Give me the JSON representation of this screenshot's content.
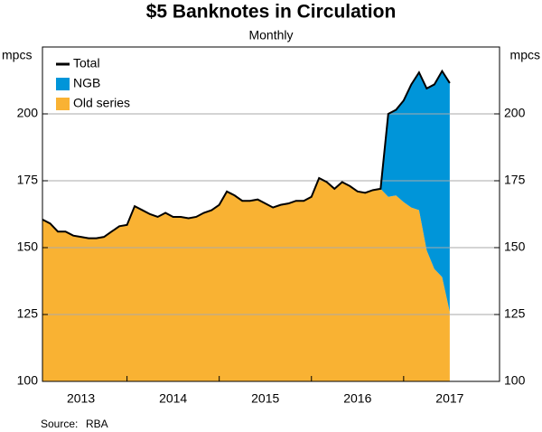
{
  "chart_data": {
    "type": "stacked_area",
    "title": "$5 Banknotes in Circulation",
    "subtitle": "Monthly",
    "y_label": "mpcs",
    "y2_label": "mpcs",
    "source_label": "Source:",
    "source": "RBA",
    "x": [
      2013.083,
      2013.167,
      2013.25,
      2013.333,
      2013.417,
      2013.5,
      2013.583,
      2013.667,
      2013.75,
      2013.833,
      2013.917,
      2014.0,
      2014.083,
      2014.167,
      2014.25,
      2014.333,
      2014.417,
      2014.5,
      2014.583,
      2014.667,
      2014.75,
      2014.833,
      2014.917,
      2015.0,
      2015.083,
      2015.167,
      2015.25,
      2015.333,
      2015.417,
      2015.5,
      2015.583,
      2015.667,
      2015.75,
      2015.833,
      2015.917,
      2016.0,
      2016.083,
      2016.167,
      2016.25,
      2016.333,
      2016.417,
      2016.5,
      2016.583,
      2016.667,
      2016.75,
      2016.833,
      2016.917,
      2017.0,
      2017.083,
      2017.167,
      2017.25,
      2017.333,
      2017.417,
      2017.5
    ],
    "series": [
      {
        "name": "Old series",
        "color": "#f9b233",
        "values": [
          160.5,
          159,
          156,
          156,
          154.5,
          154,
          153.5,
          153.5,
          154,
          156,
          158,
          158.5,
          165.5,
          164,
          162.5,
          161.5,
          163,
          161.5,
          161.5,
          161,
          161.5,
          163,
          164,
          166,
          171,
          169.5,
          167.5,
          167.5,
          168,
          166.5,
          165,
          166,
          166.5,
          167.5,
          167.5,
          169,
          176,
          174.5,
          172,
          174.5,
          173,
          171,
          170.5,
          171.5,
          172,
          169,
          169.5,
          167,
          165,
          164,
          149,
          142,
          139,
          126
        ]
      },
      {
        "name": "NGB",
        "color": "#0095d9",
        "values": [
          0,
          0,
          0,
          0,
          0,
          0,
          0,
          0,
          0,
          0,
          0,
          0,
          0,
          0,
          0,
          0,
          0,
          0,
          0,
          0,
          0,
          0,
          0,
          0,
          0,
          0,
          0,
          0,
          0,
          0,
          0,
          0,
          0,
          0,
          0,
          0,
          0,
          0,
          0,
          0,
          0,
          0,
          0,
          0,
          0,
          31,
          32,
          38,
          46,
          51.5,
          60.5,
          69,
          77,
          85.5
        ]
      },
      {
        "name": "Total",
        "color": "#000000",
        "line": true,
        "values": [
          160.5,
          159,
          156,
          156,
          154.5,
          154,
          153.5,
          153.5,
          154,
          156,
          158,
          158.5,
          165.5,
          164,
          162.5,
          161.5,
          163,
          161.5,
          161.5,
          161,
          161.5,
          163,
          164,
          166,
          171,
          169.5,
          167.5,
          167.5,
          168,
          166.5,
          165,
          166,
          166.5,
          167.5,
          167.5,
          169,
          176,
          174.5,
          172,
          174.5,
          173,
          171,
          170.5,
          171.5,
          172,
          200,
          201.5,
          205,
          211,
          215.5,
          209.5,
          211,
          216,
          211.5
        ]
      }
    ],
    "xlim": [
      2013.083,
      2018.04
    ],
    "xticks": [
      {
        "value": 2013.5,
        "label": "2013"
      },
      {
        "value": 2014.5,
        "label": "2014"
      },
      {
        "value": 2015.5,
        "label": "2015"
      },
      {
        "value": 2016.5,
        "label": "2016"
      },
      {
        "value": 2017.5,
        "label": "2017"
      }
    ],
    "xtick_marks": [
      2014,
      2015,
      2016,
      2017
    ],
    "ylim": [
      100,
      225
    ],
    "yticks": [
      100,
      125,
      150,
      175,
      200
    ],
    "y2lim": [
      100,
      225
    ],
    "y2ticks": [
      100,
      125,
      150,
      175,
      200
    ],
    "grid": true,
    "legend": "upper left"
  }
}
